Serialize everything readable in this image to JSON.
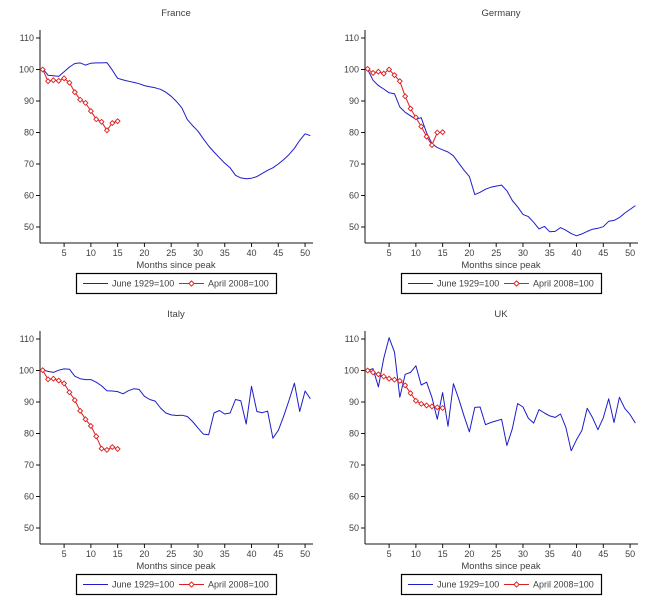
{
  "figure": {
    "background": "#ffffff",
    "xlabel": "Months since peak",
    "legend_labels": [
      "June 1929=100",
      "April 2008=100"
    ]
  },
  "colors": {
    "series_1929": "#1e1ec8",
    "series_2008": "#dc1e1e",
    "axis": "#141414",
    "text": "#404040",
    "legend_border": "#000000"
  },
  "chart_data": [
    {
      "type": "line",
      "title": "France",
      "xlabel": "Months since peak",
      "x_ticks": [
        5,
        10,
        15,
        20,
        25,
        30,
        35,
        40,
        45,
        50
      ],
      "y_ticks": [
        50,
        60,
        70,
        80,
        90,
        100,
        110
      ],
      "xlim": [
        0.5,
        51.5
      ],
      "ylim": [
        45,
        112.7
      ],
      "grid": false,
      "legend_position": "bottom",
      "series": [
        {
          "name": "June 1929=100",
          "color_key": "series_1929",
          "marker": "none",
          "x_start": 1,
          "x_step": 1,
          "values": [
            100.3,
            98.2,
            98.0,
            97.8,
            99.3,
            100.8,
            101.9,
            102.1,
            101.4,
            102.0,
            102.1,
            102.1,
            102.2,
            99.8,
            97.2,
            96.7,
            96.3,
            95.9,
            95.5,
            94.9,
            94.5,
            94.2,
            93.7,
            92.8,
            91.5,
            89.8,
            87.8,
            84.1,
            82.2,
            80.4,
            78.0,
            75.7,
            73.8,
            72.0,
            70.3,
            68.8,
            66.4,
            65.6,
            65.3,
            65.5,
            66.0,
            67.0,
            68.0,
            68.8,
            70.0,
            71.4,
            73.0,
            75.0,
            77.5,
            79.6,
            79.0
          ]
        },
        {
          "name": "April 2008=100",
          "color_key": "series_2008",
          "marker": "diamond",
          "x_start": 1,
          "x_step": 1,
          "values": [
            100.0,
            96.3,
            96.6,
            96.4,
            97.2,
            95.8,
            92.8,
            90.4,
            89.4,
            86.8,
            84.2,
            83.4,
            80.7,
            83.0,
            83.6
          ]
        }
      ]
    },
    {
      "type": "line",
      "title": "Germany",
      "xlabel": "Months since peak",
      "x_ticks": [
        5,
        10,
        15,
        20,
        25,
        30,
        35,
        40,
        45,
        50
      ],
      "y_ticks": [
        50,
        60,
        70,
        80,
        90,
        100,
        110
      ],
      "xlim": [
        0.5,
        51.5
      ],
      "ylim": [
        45,
        112.7
      ],
      "grid": false,
      "legend_position": "bottom",
      "series": [
        {
          "name": "June 1929=100",
          "color_key": "series_1929",
          "marker": "none",
          "x_start": 1,
          "x_step": 1,
          "values": [
            100.0,
            96.6,
            94.9,
            93.8,
            92.6,
            92.3,
            88.1,
            86.4,
            85.3,
            84.2,
            84.7,
            79.9,
            76.5,
            75.2,
            74.5,
            73.8,
            72.6,
            70.3,
            68.0,
            66.0,
            60.3,
            61.0,
            62.0,
            62.6,
            63.0,
            63.3,
            61.5,
            58.4,
            56.4,
            54.0,
            53.3,
            51.5,
            49.4,
            50.2,
            48.5,
            48.6,
            49.8,
            49.0,
            47.9,
            47.2,
            47.8,
            48.6,
            49.3,
            49.6,
            50.1,
            51.8,
            52.1,
            53.0,
            54.4,
            55.6,
            56.8
          ]
        },
        {
          "name": "April 2008=100",
          "color_key": "series_2008",
          "marker": "diamond",
          "x_start": 1,
          "x_step": 1,
          "values": [
            100.2,
            98.9,
            99.3,
            98.7,
            100.0,
            98.2,
            96.3,
            91.5,
            87.6,
            84.8,
            81.9,
            78.7,
            76.0,
            80.0,
            80.1
          ]
        }
      ]
    },
    {
      "type": "line",
      "title": "Italy",
      "xlabel": "Months since peak",
      "x_ticks": [
        5,
        10,
        15,
        20,
        25,
        30,
        35,
        40,
        45,
        50
      ],
      "y_ticks": [
        50,
        60,
        70,
        80,
        90,
        100,
        110
      ],
      "xlim": [
        0.5,
        51.5
      ],
      "ylim": [
        45,
        112.7
      ],
      "grid": false,
      "legend_position": "bottom",
      "series": [
        {
          "name": "June 1929=100",
          "color_key": "series_1929",
          "marker": "none",
          "x_start": 1,
          "x_step": 1,
          "values": [
            100.2,
            99.7,
            99.4,
            100.1,
            100.5,
            100.4,
            98.2,
            97.4,
            97.1,
            97.1,
            96.3,
            95.1,
            93.6,
            93.5,
            93.3,
            92.6,
            93.6,
            94.2,
            94.0,
            91.8,
            90.8,
            90.3,
            88.1,
            86.5,
            85.9,
            85.7,
            85.8,
            85.4,
            83.8,
            81.7,
            79.8,
            79.6,
            86.5,
            87.3,
            86.2,
            86.5,
            90.8,
            90.4,
            83.0,
            95.0,
            87.0,
            86.6,
            87.1,
            78.5,
            81.0,
            85.5,
            90.5,
            96.0,
            87.0,
            93.5,
            91.0
          ]
        },
        {
          "name": "April 2008=100",
          "color_key": "series_2008",
          "marker": "diamond",
          "x_start": 1,
          "x_step": 1,
          "values": [
            100.1,
            97.2,
            97.4,
            96.8,
            95.9,
            93.1,
            90.6,
            87.2,
            84.5,
            82.4,
            79.1,
            75.2,
            74.8,
            75.7,
            75.1
          ]
        }
      ]
    },
    {
      "type": "line",
      "title": "UK",
      "xlabel": "Months since peak",
      "x_ticks": [
        5,
        10,
        15,
        20,
        25,
        30,
        35,
        40,
        45,
        50
      ],
      "y_ticks": [
        50,
        60,
        70,
        80,
        90,
        100,
        110
      ],
      "xlim": [
        0.5,
        51.5
      ],
      "ylim": [
        45,
        112.7
      ],
      "grid": false,
      "legend_position": "bottom",
      "series": [
        {
          "name": "June 1929=100",
          "color_key": "series_1929",
          "marker": "none",
          "x_start": 1,
          "x_step": 1,
          "values": [
            100.0,
            100.6,
            94.8,
            103.8,
            110.4,
            105.8,
            91.5,
            98.8,
            99.4,
            101.5,
            95.4,
            96.3,
            91.5,
            84.5,
            93.0,
            82.3,
            95.8,
            91.0,
            85.5,
            80.5,
            88.3,
            88.4,
            82.8,
            83.5,
            84.0,
            84.5,
            76.2,
            81.5,
            89.5,
            88.4,
            84.9,
            83.3,
            87.6,
            86.5,
            85.6,
            85.1,
            86.2,
            82.0,
            74.5,
            78.0,
            81.0,
            88.0,
            85.0,
            81.2,
            85.0,
            91.0,
            83.5,
            91.5,
            88.0,
            86.0,
            83.3
          ]
        },
        {
          "name": "April 2008=100",
          "color_key": "series_2008",
          "marker": "diamond",
          "x_start": 1,
          "x_step": 1,
          "values": [
            100.0,
            99.4,
            98.8,
            98.1,
            97.4,
            97.1,
            96.7,
            95.3,
            92.8,
            90.4,
            89.4,
            88.9,
            88.6,
            88.3,
            88.1
          ]
        }
      ]
    }
  ]
}
